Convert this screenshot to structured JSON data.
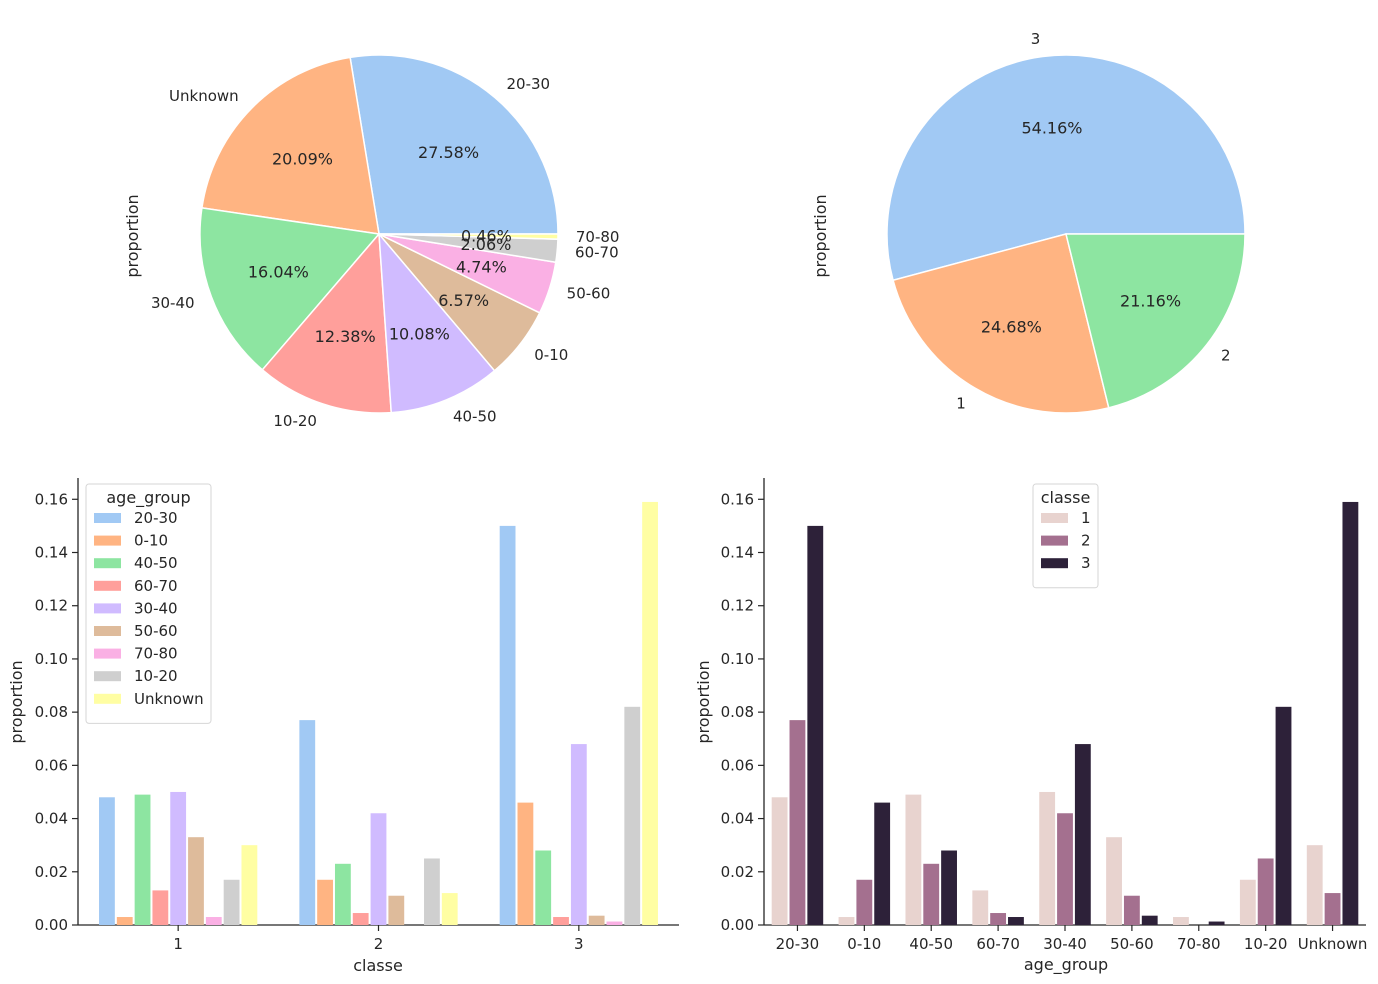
{
  "chart_data": [
    {
      "type": "pie",
      "ylabel": "proportion",
      "slices": [
        {
          "label": "20-30",
          "value": 27.58,
          "pct_text": "27.58%",
          "color": "#a1c9f4"
        },
        {
          "label": "Unknown",
          "value": 20.09,
          "pct_text": "20.09%",
          "color": "#ffb482"
        },
        {
          "label": "30-40",
          "value": 16.04,
          "pct_text": "16.04%",
          "color": "#8de5a1"
        },
        {
          "label": "10-20",
          "value": 12.38,
          "pct_text": "12.38%",
          "color": "#ff9f9b"
        },
        {
          "label": "40-50",
          "value": 10.08,
          "pct_text": "10.08%",
          "color": "#d0bbff"
        },
        {
          "label": "0-10",
          "value": 6.57,
          "pct_text": "6.57%",
          "color": "#debb9b"
        },
        {
          "label": "50-60",
          "value": 4.74,
          "pct_text": "4.74%",
          "color": "#fab0e4"
        },
        {
          "label": "60-70",
          "value": 2.06,
          "pct_text": "2.06%",
          "color": "#cfcfcf"
        },
        {
          "label": "70-80",
          "value": 0.46,
          "pct_text": "0.46%",
          "color": "#fffea3"
        }
      ]
    },
    {
      "type": "pie",
      "ylabel": "proportion",
      "slices": [
        {
          "label": "3",
          "value": 54.16,
          "pct_text": "54.16%",
          "color": "#a1c9f4"
        },
        {
          "label": "1",
          "value": 24.68,
          "pct_text": "24.68%",
          "color": "#ffb482"
        },
        {
          "label": "2",
          "value": 21.16,
          "pct_text": "21.16%",
          "color": "#8de5a1"
        }
      ]
    },
    {
      "type": "bar",
      "xlabel": "classe",
      "ylabel": "proportion",
      "categories": [
        "1",
        "2",
        "3"
      ],
      "ylim": [
        0,
        0.168
      ],
      "yticks": [
        "0.00",
        "0.02",
        "0.04",
        "0.06",
        "0.08",
        "0.10",
        "0.12",
        "0.14",
        "0.16"
      ],
      "legend": {
        "title": "age_group",
        "position": "top-left"
      },
      "series": [
        {
          "name": "20-30",
          "color": "#a1c9f4",
          "values": [
            0.048,
            0.077,
            0.15
          ]
        },
        {
          "name": "0-10",
          "color": "#ffb482",
          "values": [
            0.003,
            0.017,
            0.046
          ]
        },
        {
          "name": "40-50",
          "color": "#8de5a1",
          "values": [
            0.049,
            0.023,
            0.028
          ]
        },
        {
          "name": "60-70",
          "color": "#ff9f9b",
          "values": [
            0.013,
            0.0045,
            0.003
          ]
        },
        {
          "name": "30-40",
          "color": "#d0bbff",
          "values": [
            0.05,
            0.042,
            0.068
          ]
        },
        {
          "name": "50-60",
          "color": "#debb9b",
          "values": [
            0.033,
            0.011,
            0.0035
          ]
        },
        {
          "name": "70-80",
          "color": "#fab0e4",
          "values": [
            0.003,
            0.0,
            0.0013
          ]
        },
        {
          "name": "10-20",
          "color": "#cfcfcf",
          "values": [
            0.017,
            0.025,
            0.082
          ]
        },
        {
          "name": "Unknown",
          "color": "#fffea3",
          "values": [
            0.03,
            0.012,
            0.159
          ]
        }
      ]
    },
    {
      "type": "bar",
      "xlabel": "age_group",
      "ylabel": "proportion",
      "categories": [
        "20-30",
        "0-10",
        "40-50",
        "60-70",
        "30-40",
        "50-60",
        "70-80",
        "10-20",
        "Unknown"
      ],
      "ylim": [
        0,
        0.168
      ],
      "yticks": [
        "0.00",
        "0.02",
        "0.04",
        "0.06",
        "0.08",
        "0.10",
        "0.12",
        "0.14",
        "0.16"
      ],
      "legend": {
        "title": "classe",
        "position": "top-center"
      },
      "series": [
        {
          "name": "1",
          "color": "#e8d3cf",
          "values": [
            0.048,
            0.003,
            0.049,
            0.013,
            0.05,
            0.033,
            0.003,
            0.017,
            0.03
          ]
        },
        {
          "name": "2",
          "color": "#a4708f",
          "values": [
            0.077,
            0.017,
            0.023,
            0.0045,
            0.042,
            0.011,
            0.0,
            0.025,
            0.012
          ]
        },
        {
          "name": "3",
          "color": "#2d2139",
          "values": [
            0.15,
            0.046,
            0.028,
            0.003,
            0.068,
            0.0035,
            0.0013,
            0.082,
            0.159
          ]
        }
      ]
    }
  ]
}
